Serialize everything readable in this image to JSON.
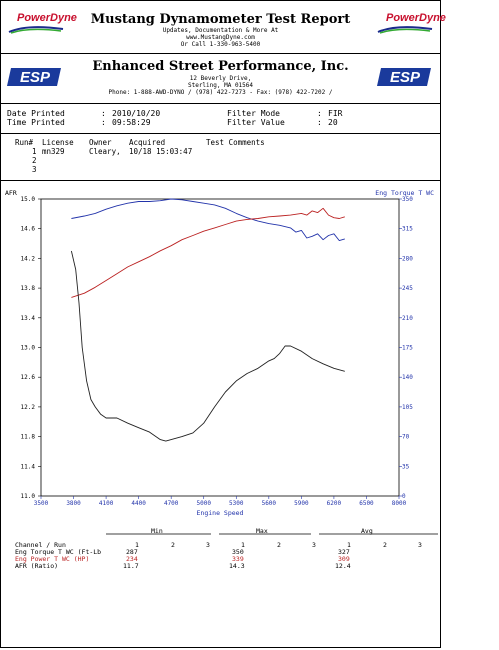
{
  "header": {
    "title": "Mustang Dynamometer Test Report",
    "line1": "Updates, Documentation & More At",
    "line2": "www.MustangDyne.com",
    "line3": "Or Call 1-330-963-5400",
    "logo_left": "PowerDyne",
    "logo_right": "PowerDyne"
  },
  "shop": {
    "name": "Enhanced Street Performance, Inc.",
    "address1": "12 Beverly Drive,",
    "address2": "Sterling, MA  01564",
    "phone": "Phone: 1-888-AWD-DYNO / (978) 422-7273 - Fax: (978) 422-7202 /"
  },
  "info": {
    "date_label": "Date Printed",
    "date_value": "2010/10/20",
    "time_label": "Time Printed",
    "time_value": "09:58:29",
    "filter_mode_label": "Filter Mode",
    "filter_mode_value": "FIR",
    "filter_value_label": "Filter Value",
    "filter_value_value": "20"
  },
  "runs": {
    "headers": [
      "Run#",
      "License",
      "Owner",
      "Acquired",
      "Test Comments"
    ],
    "rows": [
      {
        "run": "1",
        "license": "mn329",
        "owner": "Cleary,",
        "acquired": "10/18 15:03:47",
        "comments": ""
      },
      {
        "run": "2",
        "license": "",
        "owner": "",
        "acquired": "",
        "comments": ""
      },
      {
        "run": "3",
        "license": "",
        "owner": "",
        "acquired": "",
        "comments": ""
      }
    ]
  },
  "chart_data": {
    "type": "line",
    "xlabel": "Engine Speed",
    "ylabel_left": "AFR",
    "ylabel_right": "Eng Torque T WC",
    "xlim": [
      3500,
      8000
    ],
    "ylim_left": [
      11.0,
      15.0
    ],
    "ylim_right": [
      0,
      350
    ],
    "x_ticks": [
      "3500",
      "3800",
      "4100",
      "4400",
      "4700",
      "5000",
      "5300",
      "5600",
      "5900",
      "6200",
      "6500",
      "8000"
    ],
    "left_ticks": [
      "15.0",
      "14.6",
      "14.2",
      "13.8",
      "13.4",
      "13.0",
      "12.6",
      "12.2",
      "11.8",
      "11.4",
      "11.0"
    ],
    "right_ticks": [
      "350",
      "315",
      "280",
      "245",
      "210",
      "175",
      "140",
      "105",
      "70",
      "35",
      "0"
    ],
    "series": [
      {
        "name": "Eng Torque T WC",
        "axis": "right",
        "color": "#2233aa",
        "x": [
          3780,
          3900,
          4000,
          4100,
          4200,
          4300,
          4400,
          4500,
          4600,
          4700,
          4800,
          4900,
          5000,
          5100,
          5200,
          5300,
          5400,
          5500,
          5600,
          5700,
          5800,
          5850,
          5900,
          5950,
          6000,
          6050,
          6100,
          6150,
          6200,
          6250,
          6300
        ],
        "y": [
          327,
          330,
          333,
          338,
          342,
          345,
          347,
          347,
          348,
          350,
          349,
          347,
          345,
          343,
          339,
          333,
          328,
          324,
          321,
          319,
          316,
          311,
          313,
          304,
          306,
          309,
          302,
          307,
          309,
          301,
          303
        ]
      },
      {
        "name": "Eng Power T WC",
        "axis": "right",
        "color": "#bb2222",
        "x": [
          3780,
          3900,
          4000,
          4100,
          4200,
          4300,
          4400,
          4500,
          4600,
          4700,
          4800,
          4900,
          5000,
          5100,
          5200,
          5300,
          5400,
          5500,
          5600,
          5700,
          5800,
          5900,
          5950,
          6000,
          6050,
          6100,
          6150,
          6200,
          6250,
          6300
        ],
        "y": [
          234,
          239,
          246,
          254,
          262,
          270,
          276,
          282,
          289,
          295,
          302,
          307,
          312,
          316,
          320,
          324,
          326,
          327,
          329,
          330,
          331,
          333,
          331,
          336,
          334,
          339,
          331,
          328,
          327,
          329
        ]
      },
      {
        "name": "AFR",
        "axis": "left",
        "color": "#222222",
        "x": [
          3780,
          3820,
          3850,
          3880,
          3920,
          3960,
          4000,
          4050,
          4100,
          4200,
          4300,
          4400,
          4500,
          4600,
          4650,
          4700,
          4800,
          4900,
          5000,
          5100,
          5200,
          5300,
          5400,
          5500,
          5600,
          5650,
          5700,
          5750,
          5800,
          5900,
          6000,
          6100,
          6200,
          6300
        ],
        "y": [
          14.3,
          14.05,
          13.6,
          13.0,
          12.55,
          12.3,
          12.2,
          12.1,
          12.05,
          12.05,
          11.98,
          11.92,
          11.86,
          11.76,
          11.74,
          11.76,
          11.8,
          11.85,
          11.98,
          12.2,
          12.4,
          12.55,
          12.65,
          12.72,
          12.82,
          12.85,
          12.92,
          13.02,
          13.02,
          12.95,
          12.85,
          12.78,
          12.72,
          12.68
        ]
      }
    ]
  },
  "stats": {
    "col_min": "Min",
    "col_max": "Max",
    "col_avg": "Avg",
    "channel_label": "Channel / Run",
    "run_numbers": [
      "1",
      "2",
      "3"
    ],
    "rows": [
      {
        "label": "Eng Torque T WC (Ft-Lb",
        "color": "#000000",
        "min": "287",
        "max": "350",
        "avg": "327"
      },
      {
        "label": "Eng Power T WC (HP)",
        "color": "#bb2222",
        "min": "234",
        "max": "339",
        "avg": "309"
      },
      {
        "label": "AFR (Ratio)",
        "color": "#000000",
        "min": "11.7",
        "max": "14.3",
        "avg": "12.4"
      }
    ]
  }
}
